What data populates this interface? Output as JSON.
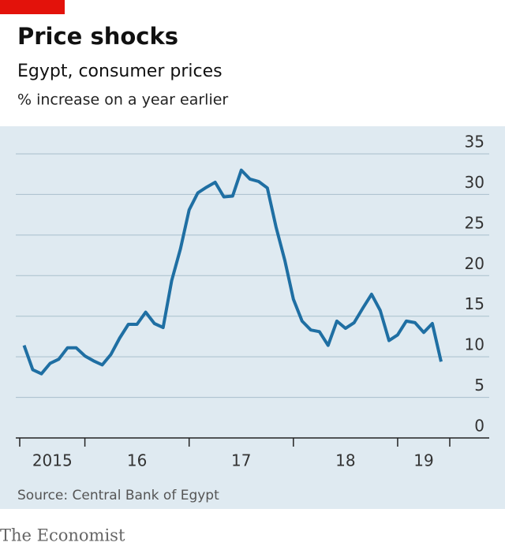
{
  "chart_data": {
    "type": "line",
    "title": "Price shocks",
    "subtitle": "Egypt, consumer prices",
    "y_label": "% increase on a year earlier",
    "source": "Source: Central Bank of Egypt",
    "publisher": "The Economist",
    "x": [
      2015.417,
      2015.5,
      2015.583,
      2015.667,
      2015.75,
      2015.833,
      2015.917,
      2016.0,
      2016.083,
      2016.167,
      2016.25,
      2016.333,
      2016.417,
      2016.5,
      2016.583,
      2016.667,
      2016.75,
      2016.833,
      2016.917,
      2017.0,
      2017.083,
      2017.167,
      2017.25,
      2017.333,
      2017.417,
      2017.5,
      2017.583,
      2017.667,
      2017.75,
      2017.833,
      2017.917,
      2018.0,
      2018.083,
      2018.167,
      2018.25,
      2018.333,
      2018.417,
      2018.5,
      2018.583,
      2018.667,
      2018.75,
      2018.833,
      2018.917,
      2019.0,
      2019.083,
      2019.167,
      2019.25,
      2019.333,
      2019.417
    ],
    "series": [
      {
        "name": "Egypt, consumer prices",
        "color": "#1f6fa3",
        "values": [
          11.4,
          8.4,
          7.9,
          9.2,
          9.7,
          11.1,
          11.1,
          10.1,
          9.5,
          9.0,
          10.3,
          12.3,
          14.0,
          14.0,
          15.5,
          14.1,
          13.6,
          19.4,
          23.3,
          28.1,
          30.2,
          30.9,
          31.5,
          29.7,
          29.8,
          33.0,
          31.9,
          31.6,
          30.8,
          26.0,
          21.9,
          17.1,
          14.4,
          13.3,
          13.1,
          11.4,
          14.4,
          13.5,
          14.2,
          16.0,
          17.7,
          15.7,
          12.0,
          12.7,
          14.4,
          14.2,
          13.0,
          14.1,
          9.4
        ]
      }
    ],
    "xlim": [
      2015.375,
      2019.5
    ],
    "xticks": [
      2016,
      2017,
      2018,
      2019
    ],
    "x_labels": [
      {
        "value": 2015,
        "label": "2015"
      },
      {
        "value": 2016,
        "label": "16"
      },
      {
        "value": 2017,
        "label": "17"
      },
      {
        "value": 2018,
        "label": "18"
      },
      {
        "value": 2019,
        "label": "19"
      }
    ],
    "ylim": [
      0,
      35
    ],
    "yticks": [
      0,
      5,
      10,
      15,
      20,
      25,
      30,
      35
    ],
    "grid": true
  }
}
